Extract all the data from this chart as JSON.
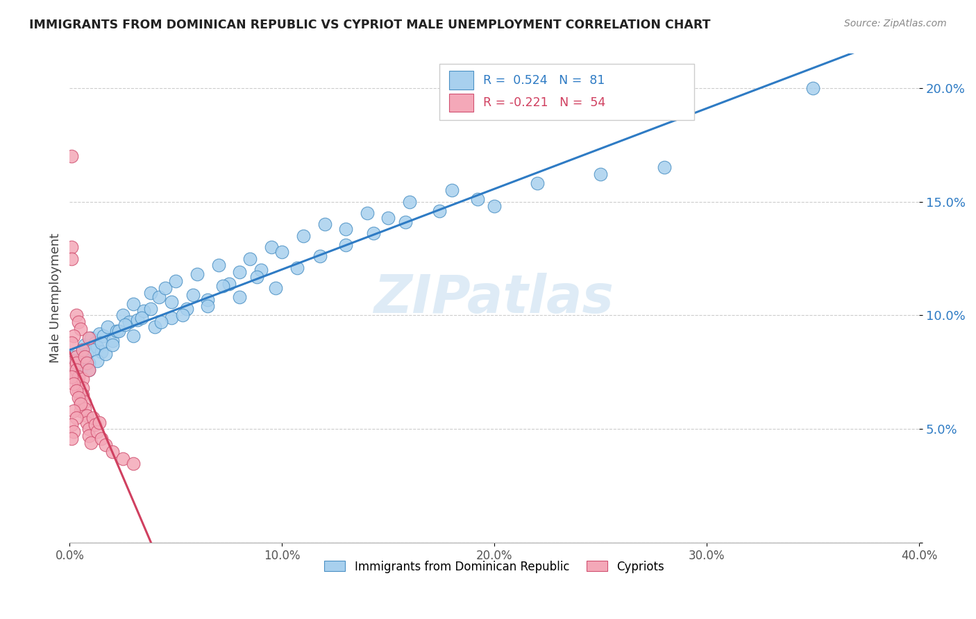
{
  "title": "IMMIGRANTS FROM DOMINICAN REPUBLIC VS CYPRIOT MALE UNEMPLOYMENT CORRELATION CHART",
  "source": "Source: ZipAtlas.com",
  "ylabel": "Male Unemployment",
  "yticks": [
    0.0,
    0.05,
    0.1,
    0.15,
    0.2
  ],
  "ytick_labels": [
    "",
    "5.0%",
    "10.0%",
    "15.0%",
    "20.0%"
  ],
  "xticks": [
    0.0,
    0.1,
    0.2,
    0.3,
    0.4
  ],
  "xtick_labels": [
    "0.0%",
    "10.0%",
    "20.0%",
    "30.0%",
    "40.0%"
  ],
  "xlim": [
    0.0,
    0.4
  ],
  "ylim": [
    0.0,
    0.215
  ],
  "blue_R": 0.524,
  "blue_N": 81,
  "pink_R": -0.221,
  "pink_N": 54,
  "blue_color": "#A8D0EE",
  "pink_color": "#F4A8B8",
  "blue_edge_color": "#4A90C4",
  "pink_edge_color": "#D05070",
  "blue_line_color": "#2E7BC4",
  "pink_line_color": "#D04060",
  "watermark": "ZIPatlas",
  "blue_legend_label": "Immigrants from Dominican Republic",
  "pink_legend_label": "Cypriots",
  "blue_scatter_x": [
    0.001,
    0.002,
    0.003,
    0.004,
    0.005,
    0.006,
    0.007,
    0.008,
    0.009,
    0.01,
    0.012,
    0.013,
    0.014,
    0.015,
    0.016,
    0.018,
    0.02,
    0.022,
    0.025,
    0.028,
    0.03,
    0.032,
    0.035,
    0.038,
    0.04,
    0.042,
    0.045,
    0.048,
    0.05,
    0.055,
    0.06,
    0.065,
    0.07,
    0.075,
    0.08,
    0.085,
    0.09,
    0.095,
    0.1,
    0.11,
    0.12,
    0.13,
    0.14,
    0.15,
    0.16,
    0.18,
    0.2,
    0.22,
    0.25,
    0.28,
    0.003,
    0.005,
    0.007,
    0.009,
    0.011,
    0.013,
    0.015,
    0.017,
    0.02,
    0.023,
    0.026,
    0.03,
    0.034,
    0.038,
    0.043,
    0.048,
    0.053,
    0.058,
    0.065,
    0.072,
    0.08,
    0.088,
    0.097,
    0.107,
    0.118,
    0.13,
    0.143,
    0.158,
    0.174,
    0.192,
    0.35
  ],
  "blue_scatter_y": [
    0.075,
    0.082,
    0.078,
    0.08,
    0.076,
    0.085,
    0.087,
    0.083,
    0.079,
    0.09,
    0.088,
    0.086,
    0.092,
    0.084,
    0.091,
    0.095,
    0.089,
    0.093,
    0.1,
    0.097,
    0.105,
    0.098,
    0.102,
    0.11,
    0.095,
    0.108,
    0.112,
    0.099,
    0.115,
    0.103,
    0.118,
    0.107,
    0.122,
    0.114,
    0.119,
    0.125,
    0.12,
    0.13,
    0.128,
    0.135,
    0.14,
    0.138,
    0.145,
    0.143,
    0.15,
    0.155,
    0.148,
    0.158,
    0.162,
    0.165,
    0.072,
    0.078,
    0.082,
    0.076,
    0.085,
    0.08,
    0.088,
    0.083,
    0.087,
    0.093,
    0.096,
    0.091,
    0.099,
    0.103,
    0.097,
    0.106,
    0.1,
    0.109,
    0.104,
    0.113,
    0.108,
    0.117,
    0.112,
    0.121,
    0.126,
    0.131,
    0.136,
    0.141,
    0.146,
    0.151,
    0.2
  ],
  "pink_scatter_x": [
    0.001,
    0.001,
    0.001,
    0.002,
    0.002,
    0.002,
    0.003,
    0.003,
    0.003,
    0.004,
    0.004,
    0.004,
    0.005,
    0.005,
    0.005,
    0.006,
    0.006,
    0.006,
    0.007,
    0.007,
    0.008,
    0.008,
    0.009,
    0.009,
    0.01,
    0.011,
    0.012,
    0.013,
    0.015,
    0.017,
    0.02,
    0.025,
    0.03,
    0.003,
    0.004,
    0.005,
    0.002,
    0.001,
    0.006,
    0.007,
    0.008,
    0.009,
    0.001,
    0.002,
    0.003,
    0.004,
    0.005,
    0.002,
    0.003,
    0.001,
    0.002,
    0.001,
    0.014,
    0.009
  ],
  "pink_scatter_y": [
    0.17,
    0.13,
    0.125,
    0.08,
    0.077,
    0.073,
    0.082,
    0.079,
    0.076,
    0.073,
    0.07,
    0.067,
    0.064,
    0.061,
    0.058,
    0.072,
    0.068,
    0.065,
    0.062,
    0.059,
    0.056,
    0.053,
    0.05,
    0.047,
    0.044,
    0.055,
    0.052,
    0.049,
    0.046,
    0.043,
    0.04,
    0.037,
    0.035,
    0.1,
    0.097,
    0.094,
    0.091,
    0.088,
    0.085,
    0.082,
    0.079,
    0.076,
    0.073,
    0.07,
    0.067,
    0.064,
    0.061,
    0.058,
    0.055,
    0.052,
    0.049,
    0.046,
    0.053,
    0.09
  ]
}
